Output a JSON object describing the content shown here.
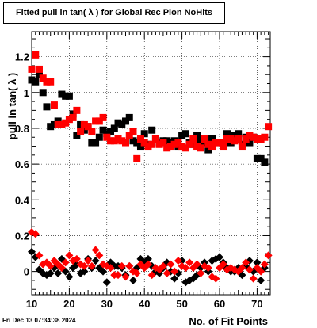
{
  "chart_data": {
    "type": "scatter",
    "title": "Fitted pull in tan( λ ) for Global Rec Pion NoHits",
    "xlabel": "No. of Fit Points",
    "ylabel": "pull in tan( λ )",
    "xlim": [
      10,
      73.5
    ],
    "ylim": [
      -0.13,
      1.34
    ],
    "xticks": [
      10,
      20,
      30,
      40,
      50,
      60,
      70
    ],
    "yticks": [
      0,
      0.2,
      0.4,
      0.6,
      0.8,
      1,
      1.2
    ],
    "ytick_labels": [
      "0",
      "0.2",
      "0.4",
      "0.6",
      "0.8",
      "1",
      "1.2"
    ],
    "grid": true,
    "series": [
      {
        "color": "#000000",
        "marker": "square",
        "x": [
          10,
          11,
          12,
          13,
          14,
          15,
          16,
          17,
          18,
          19,
          20,
          21,
          22,
          23,
          24,
          25,
          26,
          27,
          28,
          29,
          30,
          31,
          32,
          33,
          34,
          35,
          36,
          37,
          38,
          39,
          40,
          41,
          42,
          43,
          44,
          45,
          46,
          47,
          48,
          49,
          50,
          51,
          52,
          53,
          54,
          55,
          56,
          57,
          58,
          59,
          60,
          61,
          62,
          63,
          64,
          65,
          66,
          67,
          68,
          69,
          70,
          71,
          72
        ],
        "y": [
          1.07,
          1.06,
          1.1,
          1.0,
          0.92,
          0.81,
          0.82,
          0.84,
          0.99,
          0.98,
          0.98,
          0.88,
          0.76,
          0.82,
          0.79,
          0.81,
          0.72,
          0.72,
          0.75,
          0.79,
          0.77,
          0.78,
          0.8,
          0.83,
          0.82,
          0.84,
          0.86,
          0.73,
          0.72,
          0.7,
          0.77,
          0.71,
          0.79,
          0.74,
          0.72,
          0.73,
          0.73,
          0.72,
          0.73,
          0.7,
          0.76,
          0.77,
          0.72,
          0.71,
          0.76,
          0.72,
          0.72,
          0.68,
          0.74,
          0.72,
          0.72,
          0.71,
          0.77,
          0.72,
          0.76,
          0.77,
          0.71,
          0.75,
          0.72,
          0.75,
          0.63,
          0.63,
          0.61
        ]
      },
      {
        "color": "#ff0000",
        "marker": "square",
        "x": [
          10,
          11,
          12,
          13,
          14,
          15,
          16,
          17,
          18,
          19,
          20,
          21,
          22,
          23,
          24,
          25,
          26,
          27,
          28,
          29,
          30,
          31,
          32,
          33,
          34,
          35,
          36,
          37,
          38,
          39,
          40,
          41,
          42,
          43,
          44,
          45,
          46,
          47,
          48,
          49,
          50,
          51,
          52,
          53,
          54,
          55,
          56,
          57,
          58,
          59,
          60,
          61,
          62,
          63,
          64,
          65,
          66,
          67,
          68,
          69,
          70,
          71,
          72,
          73
        ],
        "y": [
          1.13,
          1.21,
          1.13,
          1.08,
          1.06,
          1.06,
          0.93,
          0.82,
          0.82,
          0.83,
          0.85,
          0.86,
          0.9,
          0.78,
          0.82,
          0.81,
          0.78,
          0.84,
          0.84,
          0.86,
          0.75,
          0.73,
          0.73,
          0.74,
          0.73,
          0.72,
          0.76,
          0.78,
          0.63,
          0.74,
          0.72,
          0.7,
          0.71,
          0.74,
          0.71,
          0.72,
          0.69,
          0.7,
          0.71,
          0.72,
          0.7,
          0.69,
          0.71,
          0.74,
          0.7,
          0.69,
          0.74,
          0.71,
          0.7,
          0.72,
          0.72,
          0.7,
          0.74,
          0.74,
          0.73,
          0.74,
          0.7,
          0.74,
          0.76,
          0.75,
          0.74,
          0.74,
          0.75,
          0.81
        ]
      },
      {
        "color": "#000000",
        "marker": "diamond",
        "x": [
          10,
          11,
          12,
          13,
          14,
          15,
          16,
          17,
          18,
          19,
          20,
          21,
          22,
          23,
          24,
          25,
          26,
          27,
          28,
          29,
          30,
          31,
          32,
          33,
          34,
          35,
          36,
          37,
          38,
          39,
          40,
          41,
          42,
          43,
          44,
          45,
          46,
          47,
          48,
          49,
          50,
          51,
          52,
          53,
          54,
          55,
          56,
          57,
          58,
          59,
          60,
          61,
          62,
          63,
          64,
          65,
          66,
          67,
          68,
          69,
          70,
          71,
          72
        ],
        "y": [
          0.11,
          0.08,
          0.01,
          -0.01,
          -0.02,
          -0.01,
          0.02,
          -0.01,
          0.07,
          0.0,
          -0.03,
          0.02,
          0.04,
          -0.01,
          0.0,
          0.07,
          0.02,
          0.06,
          0.02,
          0.0,
          -0.06,
          0.05,
          0.03,
          0.03,
          0.02,
          -0.02,
          0.03,
          -0.05,
          0.02,
          0.07,
          0.05,
          0.07,
          0.03,
          0.0,
          -0.01,
          0.02,
          0.05,
          0.0,
          -0.04,
          -0.01,
          0.06,
          -0.06,
          -0.05,
          -0.04,
          -0.02,
          0.02,
          0.05,
          0.0,
          0.06,
          0.07,
          0.08,
          0.05,
          0.02,
          0.0,
          0.0,
          0.02,
          -0.02,
          0.03,
          0.06,
          0.0,
          0.05,
          -0.05,
          0.02
        ]
      },
      {
        "color": "#ff0000",
        "marker": "diamond",
        "x": [
          10,
          11,
          12,
          13,
          14,
          15,
          16,
          17,
          18,
          19,
          20,
          21,
          22,
          23,
          24,
          25,
          26,
          27,
          28,
          29,
          30,
          31,
          32,
          33,
          34,
          35,
          36,
          37,
          38,
          39,
          40,
          41,
          42,
          43,
          44,
          45,
          46,
          47,
          48,
          49,
          50,
          51,
          52,
          53,
          54,
          55,
          56,
          57,
          58,
          59,
          60,
          61,
          62,
          63,
          64,
          65,
          66,
          67,
          68,
          69,
          70,
          71,
          72,
          73
        ],
        "y": [
          0.22,
          0.21,
          0.09,
          0.04,
          0.05,
          0.03,
          0.06,
          0.04,
          0.02,
          0.05,
          0.09,
          0.06,
          0.07,
          0.04,
          0.03,
          0.06,
          0.03,
          0.12,
          0.09,
          0.04,
          0.03,
          0.02,
          -0.02,
          -0.02,
          0.03,
          -0.03,
          0.03,
          0.0,
          -0.01,
          0.04,
          0.02,
          0.04,
          -0.02,
          0.02,
          0.01,
          0.03,
          -0.01,
          0.04,
          0.0,
          0.06,
          0.03,
          0.02,
          0.05,
          0.02,
          0.04,
          -0.01,
          0.03,
          0.02,
          -0.03,
          -0.04,
          0.02,
          0.04,
          0.01,
          0.02,
          0.01,
          0.0,
          0.02,
          0.05,
          0.01,
          -0.04,
          0.02,
          0.0,
          0.04,
          0.09
        ]
      }
    ]
  },
  "footer": {
    "timestamp": "Fri Dec 13 07:34:38 2024"
  }
}
